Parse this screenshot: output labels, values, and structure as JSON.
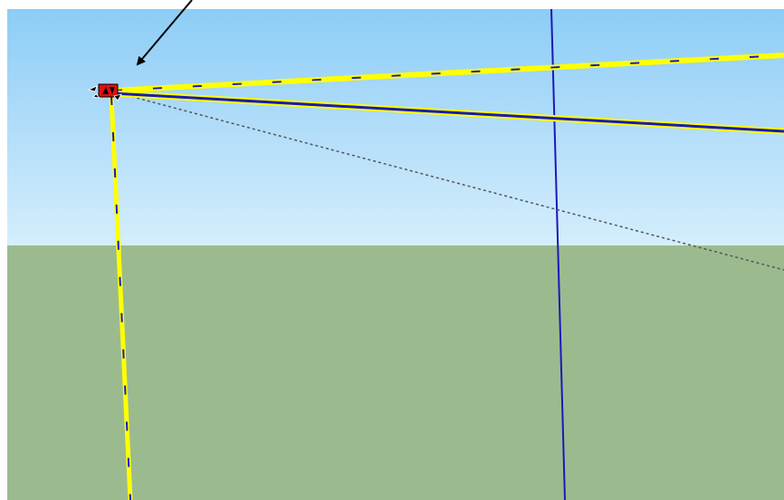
{
  "scene": {
    "sky_color_top": "#8ccdf6",
    "sky_color_bottom": "#d4eefc",
    "ground_color": "#9bbb8f",
    "edge_highlight_color": "#ffff00",
    "axis_color": "#1a1ab8",
    "guide_color": "#555555",
    "endpoint_marker_color": "#e01010",
    "annotation_arrow_color": "#000000"
  },
  "icons": {
    "endpoint_marker": "inference-endpoint-icon",
    "move_cursor": "move-cursor-icon",
    "annotation_arrow": "annotation-arrow-icon"
  }
}
